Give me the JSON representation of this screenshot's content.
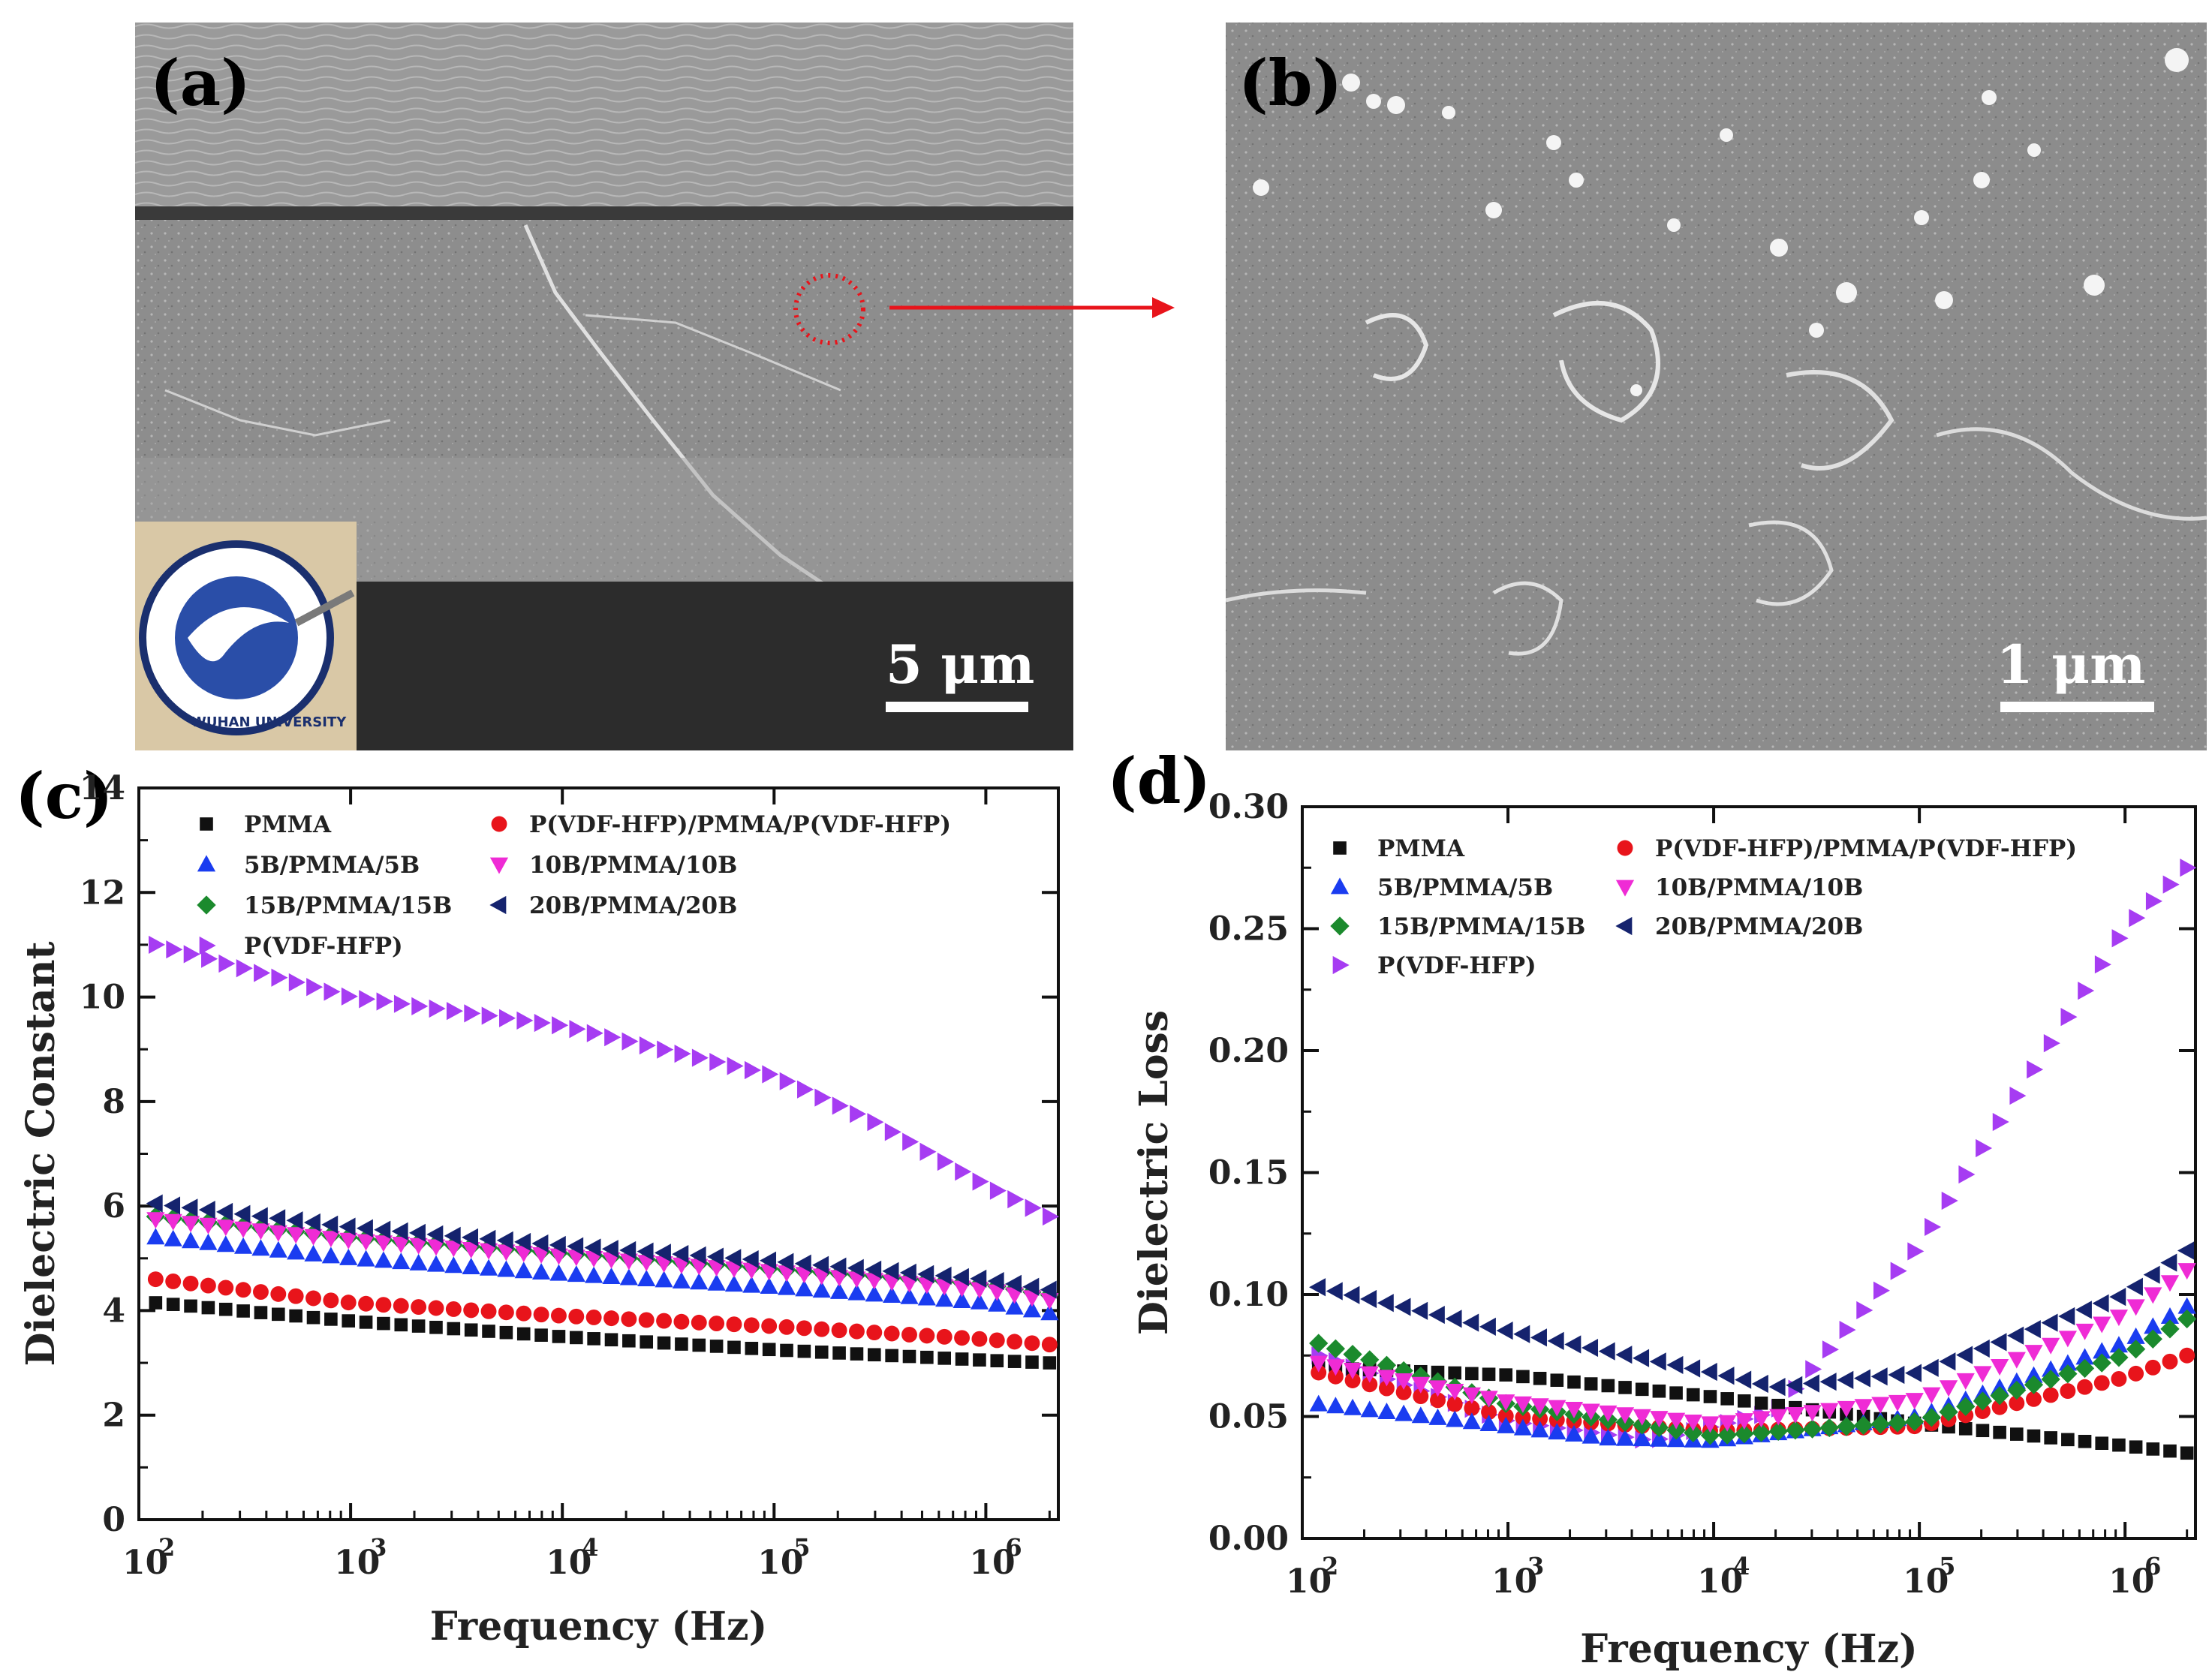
{
  "figure": {
    "panel_labels": [
      "(a)",
      "(b)",
      "(c)",
      "(d)"
    ],
    "scale_bar_a": "5 μm",
    "scale_bar_b": "1 μm",
    "logo_text": "WUHAN UNIVERSITY"
  },
  "colors": {
    "PMMA": "#111111",
    "P(VDF-HFP)/PMMA/P(VDF-HFP)": "#e8141b",
    "5B/PMMA/5B": "#1a3cf0",
    "10B/PMMA/10B": "#ef2bd5",
    "15B/PMMA/15B": "#1b8a2d",
    "20B/PMMA/20B": "#15236e",
    "P(VDF-HFP)": "#a63cf2"
  },
  "chart_data": [
    {
      "panel": "(c)",
      "type": "scatter",
      "xlabel": "Frequency (Hz)",
      "ylabel": "Dielectric Constant",
      "xscale": "log",
      "xlim": [
        100,
        2200000
      ],
      "ylim": [
        0,
        14
      ],
      "xticks": [
        100,
        1000,
        10000,
        100000,
        1000000
      ],
      "xtick_labels": [
        [
          "10",
          "2"
        ],
        [
          "10",
          "3"
        ],
        [
          "10",
          "4"
        ],
        [
          "10",
          "5"
        ],
        [
          "10",
          "6"
        ]
      ],
      "yticks": [
        0,
        2,
        4,
        6,
        8,
        10,
        12,
        14
      ],
      "legend_position": "top-left, two columns",
      "series": [
        {
          "name": "PMMA",
          "marker": "square",
          "x": [
            120,
            1000,
            10000,
            100000,
            1000000,
            2000000
          ],
          "y": [
            4.15,
            3.8,
            3.5,
            3.25,
            3.05,
            3.0
          ]
        },
        {
          "name": "P(VDF-HFP)/PMMA/P(VDF-HFP)",
          "marker": "circle",
          "x": [
            120,
            1000,
            10000,
            100000,
            1000000,
            2000000
          ],
          "y": [
            4.6,
            4.15,
            3.9,
            3.7,
            3.45,
            3.35
          ]
        },
        {
          "name": "5B/PMMA/5B",
          "marker": "triangle-up",
          "x": [
            120,
            1000,
            10000,
            100000,
            1000000,
            2000000
          ],
          "y": [
            5.4,
            5.0,
            4.7,
            4.45,
            4.15,
            3.95
          ]
        },
        {
          "name": "10B/PMMA/10B",
          "marker": "triangle-down",
          "x": [
            120,
            1000,
            10000,
            100000,
            1000000,
            2000000
          ],
          "y": [
            5.75,
            5.35,
            5.05,
            4.75,
            4.4,
            4.2
          ]
        },
        {
          "name": "15B/PMMA/15B",
          "marker": "diamond",
          "x": [
            120,
            1000,
            10000,
            100000,
            1000000,
            2000000
          ],
          "y": [
            5.8,
            5.4,
            5.1,
            4.8,
            4.5,
            4.3
          ]
        },
        {
          "name": "20B/PMMA/20B",
          "marker": "triangle-left",
          "x": [
            120,
            1000,
            10000,
            100000,
            1000000,
            2000000
          ],
          "y": [
            6.05,
            5.6,
            5.25,
            4.95,
            4.6,
            4.4
          ]
        },
        {
          "name": "P(VDF-HFP)",
          "marker": "triangle-right",
          "x": [
            120,
            1000,
            10000,
            100000,
            300000,
            1000000,
            2000000
          ],
          "y": [
            11.0,
            10.0,
            9.45,
            8.5,
            7.6,
            6.4,
            5.8
          ]
        }
      ]
    },
    {
      "panel": "(d)",
      "type": "scatter",
      "xlabel": "Frequency (Hz)",
      "ylabel": "Dielectric Loss",
      "xscale": "log",
      "xlim": [
        100,
        2200000
      ],
      "ylim": [
        0,
        0.3
      ],
      "xticks": [
        100,
        1000,
        10000,
        100000,
        1000000
      ],
      "xtick_labels": [
        [
          "10",
          "2"
        ],
        [
          "10",
          "3"
        ],
        [
          "10",
          "4"
        ],
        [
          "10",
          "5"
        ],
        [
          "10",
          "6"
        ]
      ],
      "yticks": [
        0.0,
        0.05,
        0.1,
        0.15,
        0.2,
        0.25,
        0.3
      ],
      "ytick_labels": [
        "0.00",
        "0.05",
        "0.10",
        "0.15",
        "0.20",
        "0.25",
        "0.30"
      ],
      "legend_position": "top-left, two columns",
      "series": [
        {
          "name": "PMMA",
          "marker": "square",
          "x": [
            120,
            1000,
            10000,
            100000,
            1000000,
            2000000
          ],
          "y": [
            0.07,
            0.067,
            0.058,
            0.047,
            0.038,
            0.035
          ]
        },
        {
          "name": "P(VDF-HFP)/PMMA/P(VDF-HFP)",
          "marker": "circle",
          "x": [
            120,
            1000,
            10000,
            100000,
            1000000,
            2000000
          ],
          "y": [
            0.068,
            0.05,
            0.044,
            0.046,
            0.066,
            0.075
          ]
        },
        {
          "name": "5B/PMMA/5B",
          "marker": "triangle-up",
          "x": [
            120,
            500,
            3000,
            10000,
            100000,
            1000000,
            2000000
          ],
          "y": [
            0.055,
            0.049,
            0.041,
            0.04,
            0.05,
            0.08,
            0.095
          ]
        },
        {
          "name": "10B/PMMA/10B",
          "marker": "triangle-down",
          "x": [
            120,
            1000,
            10000,
            100000,
            1000000,
            2000000
          ],
          "y": [
            0.072,
            0.056,
            0.047,
            0.057,
            0.092,
            0.11
          ]
        },
        {
          "name": "15B/PMMA/15B",
          "marker": "diamond",
          "x": [
            120,
            1000,
            10000,
            100000,
            1000000,
            2000000
          ],
          "y": [
            0.08,
            0.055,
            0.042,
            0.048,
            0.075,
            0.09
          ]
        },
        {
          "name": "20B/PMMA/20B",
          "marker": "triangle-left",
          "x": [
            120,
            1000,
            10000,
            20000,
            100000,
            1000000,
            2000000
          ],
          "y": [
            0.103,
            0.085,
            0.068,
            0.062,
            0.068,
            0.1,
            0.118
          ]
        },
        {
          "name": "P(VDF-HFP)",
          "marker": "triangle-right",
          "x": [
            120,
            1000,
            5000,
            20000,
            100000,
            1000000,
            2000000
          ],
          "y": [
            0.075,
            0.048,
            0.04,
            0.052,
            0.12,
            0.25,
            0.275
          ]
        }
      ]
    }
  ]
}
